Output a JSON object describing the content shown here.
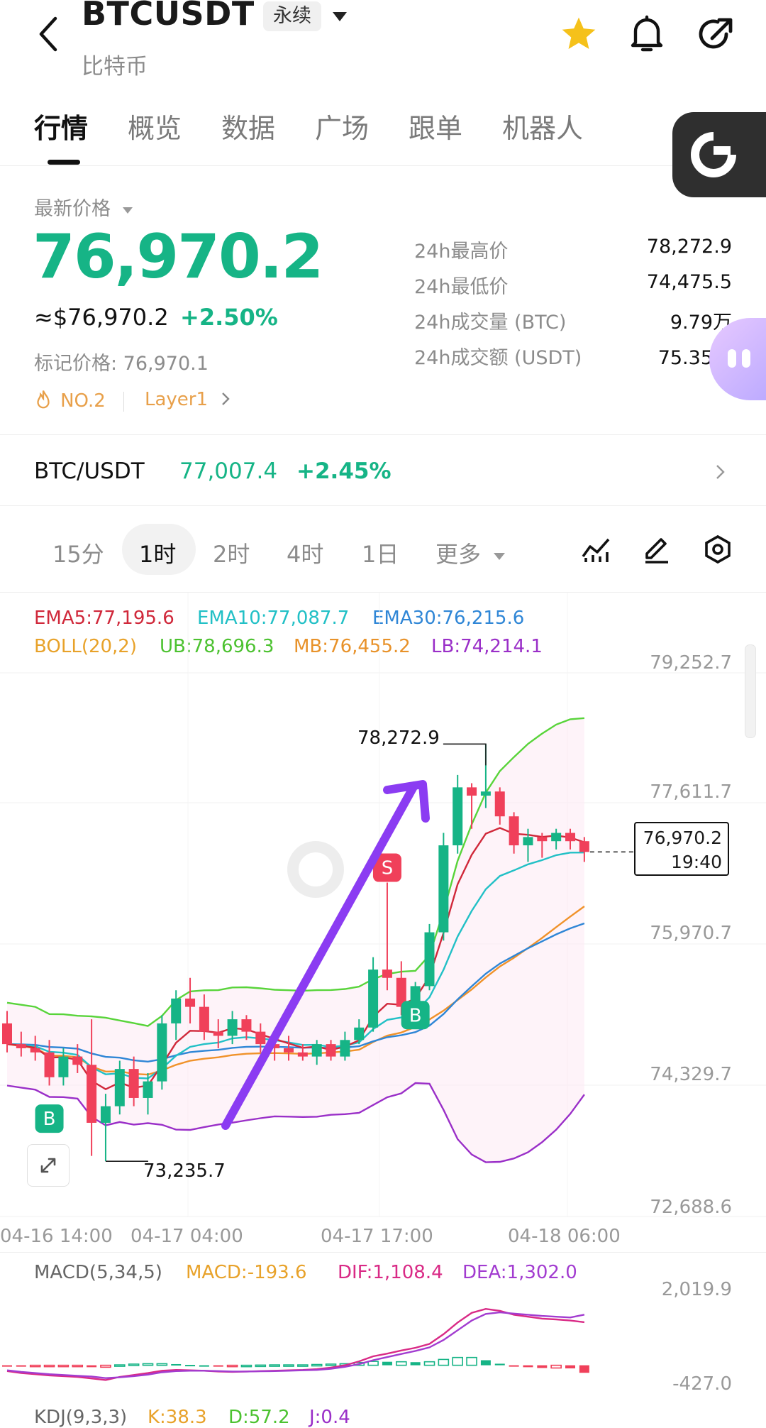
{
  "header": {
    "title": "BTCUSDT",
    "badge": "永续",
    "subtitle": "比特币"
  },
  "tabs": [
    "行情",
    "概览",
    "数据",
    "广场",
    "跟单",
    "机器人"
  ],
  "price": {
    "label": "最新价格",
    "last": "76,970.2",
    "usd": "≈$76,970.2",
    "change": "+2.50%",
    "mark": "标记价格: 76,970.1",
    "rank": "NO.2",
    "category": "Layer1"
  },
  "stats": [
    {
      "label": "24h最高价",
      "value": "78,272.9"
    },
    {
      "label": "24h最低价",
      "value": "74,475.5"
    },
    {
      "label": "24h成交量 (BTC)",
      "value": "9.79万"
    },
    {
      "label": "24h成交额 (USDT)",
      "value": "75.35亿"
    }
  ],
  "spot": {
    "pair": "BTC/USDT",
    "price": "77,007.4",
    "change": "+2.45%"
  },
  "timeframes": [
    "15分",
    "1时",
    "2时",
    "4时",
    "1日",
    "更多"
  ],
  "timeframe_selected": "1时",
  "indicators": {
    "ema5": "EMA5:77,195.6",
    "ema10": "EMA10:77,087.7",
    "ema30": "EMA30:76,215.6",
    "boll": "BOLL(20,2)",
    "ub": "UB:78,696.3",
    "mb": "MB:76,455.2",
    "lb": "LB:74,214.1"
  },
  "colors": {
    "up": "#16b486",
    "down": "#f0405a",
    "ema5": "#d0283a",
    "ema10": "#22c0c6",
    "ema30": "#2f86d6",
    "ub": "#58d43a",
    "mb": "#f0922a",
    "lb": "#9a2fc8",
    "arrow": "#8b3cf2"
  },
  "chart_data": {
    "type": "candlestick",
    "y_ticks": [
      "79,252.7",
      "77,611.7",
      "75,970.7",
      "74,329.7",
      "72,688.6"
    ],
    "ylim": [
      72688.6,
      79252.7
    ],
    "x_ticks": [
      "04-16 14:00",
      "04-17 04:00",
      "04-17 17:00",
      "04-18 06:00"
    ],
    "high_label": "78,272.9",
    "high_value": 78272.9,
    "low_label": "73,235.7",
    "low_value": 73235.7,
    "current_price": "76,970.2",
    "current_time": "19:40",
    "current_value": 76970.2,
    "candles": [
      {
        "o": 74900,
        "h": 75050,
        "l": 74550,
        "c": 74650
      },
      {
        "o": 74650,
        "h": 74800,
        "l": 74500,
        "c": 74600
      },
      {
        "o": 74600,
        "h": 74750,
        "l": 74450,
        "c": 74550
      },
      {
        "o": 74550,
        "h": 74700,
        "l": 74150,
        "c": 74250
      },
      {
        "o": 74250,
        "h": 74600,
        "l": 74150,
        "c": 74500
      },
      {
        "o": 74500,
        "h": 74650,
        "l": 74300,
        "c": 74400
      },
      {
        "o": 74400,
        "h": 74950,
        "l": 73300,
        "c": 73700
      },
      {
        "o": 73700,
        "h": 74050,
        "l": 73235.7,
        "c": 73900
      },
      {
        "o": 73900,
        "h": 74450,
        "l": 73800,
        "c": 74350
      },
      {
        "o": 74350,
        "h": 74500,
        "l": 73900,
        "c": 74000
      },
      {
        "o": 74000,
        "h": 74300,
        "l": 73800,
        "c": 74200
      },
      {
        "o": 74200,
        "h": 75000,
        "l": 74100,
        "c": 74900
      },
      {
        "o": 74900,
        "h": 75300,
        "l": 74700,
        "c": 75200
      },
      {
        "o": 75200,
        "h": 75450,
        "l": 74900,
        "c": 75100
      },
      {
        "o": 75100,
        "h": 75250,
        "l": 74700,
        "c": 74800
      },
      {
        "o": 74800,
        "h": 74950,
        "l": 74600,
        "c": 74750
      },
      {
        "o": 74750,
        "h": 75050,
        "l": 74650,
        "c": 74950
      },
      {
        "o": 74950,
        "h": 75000,
        "l": 74700,
        "c": 74800
      },
      {
        "o": 74800,
        "h": 74900,
        "l": 74550,
        "c": 74650
      },
      {
        "o": 74650,
        "h": 74750,
        "l": 74450,
        "c": 74600
      },
      {
        "o": 74600,
        "h": 74750,
        "l": 74450,
        "c": 74550
      },
      {
        "o": 74550,
        "h": 74650,
        "l": 74450,
        "c": 74500
      },
      {
        "o": 74500,
        "h": 74700,
        "l": 74400,
        "c": 74650
      },
      {
        "o": 74650,
        "h": 74700,
        "l": 74450,
        "c": 74500
      },
      {
        "o": 74500,
        "h": 74800,
        "l": 74450,
        "c": 74700
      },
      {
        "o": 74700,
        "h": 74950,
        "l": 74650,
        "c": 74850
      },
      {
        "o": 74850,
        "h": 75700,
        "l": 74800,
        "c": 75550
      },
      {
        "o": 75550,
        "h": 76600,
        "l": 75300,
        "c": 75450
      },
      {
        "o": 75450,
        "h": 75650,
        "l": 75000,
        "c": 75100
      },
      {
        "o": 75100,
        "h": 75400,
        "l": 75000,
        "c": 75350
      },
      {
        "o": 75350,
        "h": 76100,
        "l": 75300,
        "c": 76000
      },
      {
        "o": 76000,
        "h": 77200,
        "l": 75900,
        "c": 77050
      },
      {
        "o": 77050,
        "h": 77900,
        "l": 76950,
        "c": 77750
      },
      {
        "o": 77750,
        "h": 77800,
        "l": 77250,
        "c": 77650
      },
      {
        "o": 77650,
        "h": 78272.9,
        "l": 77500,
        "c": 77700
      },
      {
        "o": 77700,
        "h": 77750,
        "l": 77300,
        "c": 77400
      },
      {
        "o": 77400,
        "h": 77450,
        "l": 76950,
        "c": 77050
      },
      {
        "o": 77050,
        "h": 77250,
        "l": 76850,
        "c": 77150
      },
      {
        "o": 77150,
        "h": 77200,
        "l": 76900,
        "c": 77100
      },
      {
        "o": 77100,
        "h": 77250,
        "l": 77000,
        "c": 77200
      },
      {
        "o": 77200,
        "h": 77250,
        "l": 77000,
        "c": 77100
      },
      {
        "o": 77100,
        "h": 77150,
        "l": 76850,
        "c": 76970.2
      }
    ],
    "markers": [
      {
        "label": "B",
        "index": 3,
        "price": 73750,
        "color": "#16b486"
      },
      {
        "label": "S",
        "index": 27,
        "price": 76780,
        "color": "#f0405a"
      },
      {
        "label": "B",
        "index": 29,
        "price": 75000,
        "color": "#16b486"
      }
    ]
  },
  "macd": {
    "params": "MACD(5,34,5)",
    "macd": "MACD:-193.6",
    "dif": "DIF:1,108.4",
    "dea": "DEA:1,302.0",
    "y_ticks": [
      "2,019.9",
      "-427.0"
    ],
    "ylim": [
      -427.0,
      2019.9
    ],
    "dif_values": [
      -150,
      -200,
      -230,
      -260,
      -280,
      -300,
      -340,
      -380,
      -300,
      -250,
      -200,
      -140,
      -120,
      -130,
      -140,
      -160,
      -170,
      -160,
      -150,
      -140,
      -130,
      -120,
      -100,
      -60,
      0,
      100,
      230,
      300,
      380,
      450,
      550,
      800,
      1100,
      1350,
      1450,
      1400,
      1300,
      1250,
      1200,
      1180,
      1150,
      1108.4
    ],
    "dea_values": [
      -130,
      -170,
      -200,
      -230,
      -250,
      -270,
      -290,
      -330,
      -310,
      -280,
      -240,
      -180,
      -150,
      -140,
      -140,
      -150,
      -160,
      -160,
      -155,
      -150,
      -140,
      -130,
      -120,
      -90,
      -40,
      30,
      130,
      210,
      290,
      370,
      460,
      650,
      900,
      1150,
      1320,
      1360,
      1330,
      1300,
      1270,
      1250,
      1230,
      1302.0
    ],
    "hist_values": [
      -20,
      -30,
      -30,
      -30,
      -30,
      -30,
      -50,
      -50,
      10,
      30,
      40,
      40,
      30,
      10,
      0,
      -10,
      -10,
      0,
      5,
      10,
      10,
      10,
      20,
      30,
      40,
      70,
      100,
      90,
      90,
      80,
      90,
      150,
      200,
      200,
      130,
      40,
      -30,
      -50,
      -70,
      -70,
      -80,
      -193.6
    ]
  },
  "kdj": {
    "params": "KDJ(9,3,3)",
    "k": "K:38.3",
    "d": "D:57.2",
    "j": "J:0.4"
  }
}
